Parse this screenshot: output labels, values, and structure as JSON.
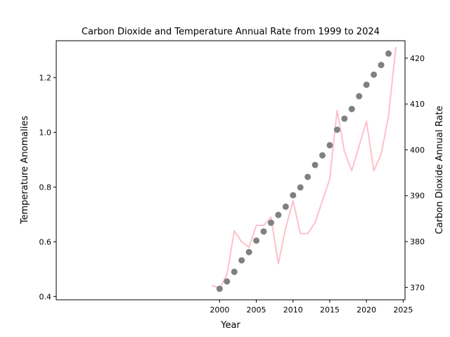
{
  "chart_data": {
    "type": "line",
    "title": "Carbon Dioxide and Temperature Annual Rate from 1999 to 2024",
    "xlabel": "Year",
    "ylabel_left": "Temperature Anomalies",
    "ylabel_right": "Carbon Dioxide Annual Rate",
    "x_ticks": [
      2000,
      2005,
      2010,
      2015,
      2020,
      2025
    ],
    "x_tick_labels": [
      "2000",
      "2005",
      "2010",
      "2015",
      "2020",
      "2025"
    ],
    "y_left_ticks": [
      0.4,
      0.6,
      0.8,
      1.0,
      1.2
    ],
    "y_left_tick_labels": [
      "0.4",
      "0.6",
      "0.8",
      "1.0",
      "1.2"
    ],
    "y_right_ticks": [
      370,
      380,
      390,
      400,
      410,
      420
    ],
    "y_right_tick_labels": [
      "370",
      "380",
      "390",
      "400",
      "410",
      "420"
    ],
    "xlim": [
      1977.75,
      2025.25
    ],
    "ylim_left": [
      0.388,
      1.335
    ],
    "ylim_right": [
      367.3,
      423.8
    ],
    "grid": false,
    "legend": "none",
    "colors": {
      "temperature": "#ffc0cb",
      "co2": "#808080"
    },
    "series": [
      {
        "axis": "left",
        "style": "line",
        "x": [
          1999,
          2000,
          2001,
          2002,
          2003,
          2004,
          2005,
          2006,
          2007,
          2008,
          2009,
          2010,
          2011,
          2012,
          2013,
          2014,
          2015,
          2016,
          2017,
          2018,
          2019,
          2020,
          2021,
          2022,
          2023,
          2024
        ],
        "values": [
          0.44,
          0.43,
          0.48,
          0.64,
          0.6,
          0.58,
          0.66,
          0.66,
          0.69,
          0.52,
          0.65,
          0.75,
          0.63,
          0.63,
          0.67,
          0.75,
          0.83,
          1.08,
          0.93,
          0.86,
          0.95,
          1.04,
          0.86,
          0.92,
          1.06,
          1.31
        ]
      },
      {
        "axis": "right",
        "style": "scatter",
        "x": [
          2000,
          2001,
          2002,
          2003,
          2004,
          2005,
          2006,
          2007,
          2008,
          2009,
          2010,
          2011,
          2012,
          2013,
          2014,
          2015,
          2016,
          2017,
          2018,
          2019,
          2020,
          2021,
          2022,
          2023
        ],
        "values": [
          369.7,
          371.3,
          373.4,
          375.9,
          377.7,
          380.2,
          382.2,
          384.1,
          385.8,
          387.6,
          390.1,
          391.8,
          394.1,
          396.7,
          398.8,
          401.0,
          404.4,
          406.8,
          408.9,
          411.7,
          414.2,
          416.4,
          418.5,
          421.0
        ]
      }
    ]
  }
}
